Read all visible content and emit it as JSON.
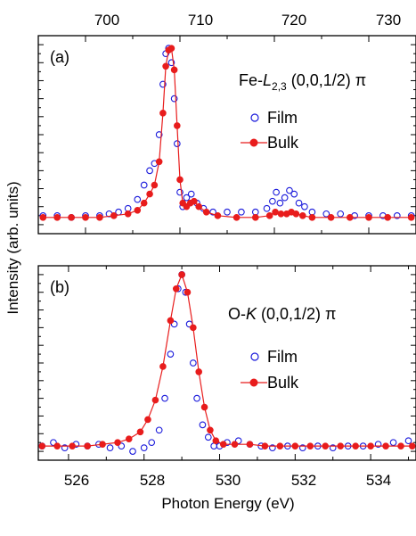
{
  "chart_data": [
    {
      "type": "line",
      "panel_label": "(a)",
      "annotation": {
        "prefix": "Fe-",
        "italic": "L",
        "subscript": "2,3",
        "suffix": " (0,0,1/2) π"
      },
      "xlabel": "",
      "ylabel": "Intensity (arb. units)",
      "xlim": [
        695,
        735
      ],
      "ylim": [
        -0.05,
        1.05
      ],
      "x_ticks": [
        "700",
        "710",
        "720",
        "730"
      ],
      "x_tick_values": [
        700,
        710,
        720,
        730
      ],
      "x_tick_position": "top",
      "y_tick_labels": "none",
      "legend_placement": "right",
      "series": [
        {
          "name": "Film",
          "marker": "open-circle",
          "color": "#1a1adb",
          "x": [
            695.5,
            697,
            698.5,
            700,
            701.5,
            702.5,
            703.5,
            704.5,
            705.5,
            706.2,
            706.8,
            707.3,
            707.8,
            708.2,
            708.5,
            708.8,
            709.1,
            709.4,
            709.7,
            710.0,
            710.3,
            710.7,
            711.2,
            711.8,
            712.5,
            713.5,
            715,
            716.5,
            718,
            719.2,
            719.8,
            720.2,
            720.6,
            721.1,
            721.6,
            722.1,
            722.6,
            723.2,
            724,
            725.5,
            727,
            728.5,
            730,
            731.5,
            733,
            734.5
          ],
          "y": [
            0.05,
            0.05,
            0.04,
            0.05,
            0.05,
            0.06,
            0.07,
            0.09,
            0.14,
            0.22,
            0.3,
            0.34,
            0.5,
            0.78,
            0.95,
            0.98,
            0.9,
            0.7,
            0.45,
            0.18,
            0.1,
            0.15,
            0.17,
            0.12,
            0.09,
            0.07,
            0.07,
            0.07,
            0.07,
            0.09,
            0.13,
            0.18,
            0.12,
            0.15,
            0.19,
            0.17,
            0.12,
            0.1,
            0.07,
            0.06,
            0.06,
            0.05,
            0.05,
            0.05,
            0.05,
            0.05
          ]
        },
        {
          "name": "Bulk",
          "marker": "filled-circle-line",
          "color": "#e81c1c",
          "x": [
            695.5,
            697,
            698.5,
            700,
            701.5,
            703,
            704.5,
            705.5,
            706.2,
            706.8,
            707.3,
            707.8,
            708.2,
            708.5,
            708.8,
            709.1,
            709.4,
            709.7,
            710.0,
            710.3,
            710.7,
            711.1,
            711.5,
            712,
            712.8,
            714,
            716,
            718,
            719.5,
            720.1,
            720.7,
            721.3,
            721.8,
            722.3,
            723,
            724,
            726,
            728,
            730,
            732,
            734.5
          ],
          "y": [
            0.04,
            0.04,
            0.04,
            0.04,
            0.04,
            0.05,
            0.06,
            0.08,
            0.12,
            0.17,
            0.22,
            0.35,
            0.62,
            0.88,
            0.97,
            0.98,
            0.86,
            0.55,
            0.25,
            0.12,
            0.1,
            0.12,
            0.13,
            0.1,
            0.07,
            0.05,
            0.04,
            0.04,
            0.05,
            0.07,
            0.06,
            0.06,
            0.07,
            0.06,
            0.05,
            0.04,
            0.04,
            0.04,
            0.04,
            0.04,
            0.04
          ]
        }
      ]
    },
    {
      "type": "line",
      "panel_label": "(b)",
      "annotation": {
        "prefix": "O-",
        "italic": "K",
        "subscript": "",
        "suffix": " (0,0,1/2) π"
      },
      "xlabel": "Photon Energy (eV)",
      "ylabel": "",
      "xlim": [
        525.2,
        535.2
      ],
      "ylim": [
        -0.05,
        1.05
      ],
      "x_ticks": [
        "526",
        "528",
        "530",
        "532",
        "534"
      ],
      "x_tick_values": [
        526,
        528,
        530,
        532,
        534
      ],
      "x_tick_position": "bottom",
      "y_tick_labels": "none",
      "legend_placement": "right",
      "series": [
        {
          "name": "Film",
          "marker": "open-circle",
          "color": "#1a1adb",
          "x": [
            525.3,
            525.6,
            525.9,
            526.2,
            526.5,
            526.8,
            527.1,
            527.4,
            527.7,
            528.0,
            528.2,
            528.4,
            528.55,
            528.7,
            528.8,
            528.9,
            529.0,
            529.1,
            529.2,
            529.3,
            529.4,
            529.55,
            529.7,
            529.85,
            530.0,
            530.2,
            530.5,
            530.8,
            531.1,
            531.4,
            531.8,
            532.2,
            532.6,
            533.0,
            533.4,
            533.8,
            534.2,
            534.6,
            535.0
          ],
          "y": [
            0.03,
            0.05,
            0.02,
            0.04,
            0.03,
            0.04,
            0.02,
            0.03,
            0.0,
            0.02,
            0.05,
            0.12,
            0.3,
            0.55,
            0.72,
            0.92,
            1.0,
            0.9,
            0.72,
            0.5,
            0.3,
            0.15,
            0.08,
            0.03,
            0.03,
            0.05,
            0.06,
            0.04,
            0.03,
            0.02,
            0.03,
            0.02,
            0.03,
            0.02,
            0.03,
            0.03,
            0.04,
            0.05,
            0.06
          ]
        },
        {
          "name": "Bulk",
          "marker": "filled-circle-line",
          "color": "#e81c1c",
          "x": [
            525.3,
            525.7,
            526.1,
            526.5,
            526.9,
            527.3,
            527.6,
            527.9,
            528.1,
            528.3,
            528.5,
            528.7,
            528.85,
            529.0,
            529.15,
            529.3,
            529.45,
            529.6,
            529.75,
            529.9,
            530.1,
            530.4,
            530.8,
            531.2,
            531.6,
            532.0,
            532.4,
            532.8,
            533.2,
            533.6,
            534.0,
            534.4,
            534.8,
            535.1
          ],
          "y": [
            0.03,
            0.03,
            0.03,
            0.03,
            0.04,
            0.05,
            0.07,
            0.11,
            0.18,
            0.29,
            0.48,
            0.74,
            0.92,
            1.0,
            0.9,
            0.7,
            0.45,
            0.25,
            0.12,
            0.06,
            0.04,
            0.04,
            0.04,
            0.03,
            0.03,
            0.03,
            0.03,
            0.03,
            0.03,
            0.03,
            0.03,
            0.03,
            0.03,
            0.03
          ]
        }
      ]
    }
  ]
}
